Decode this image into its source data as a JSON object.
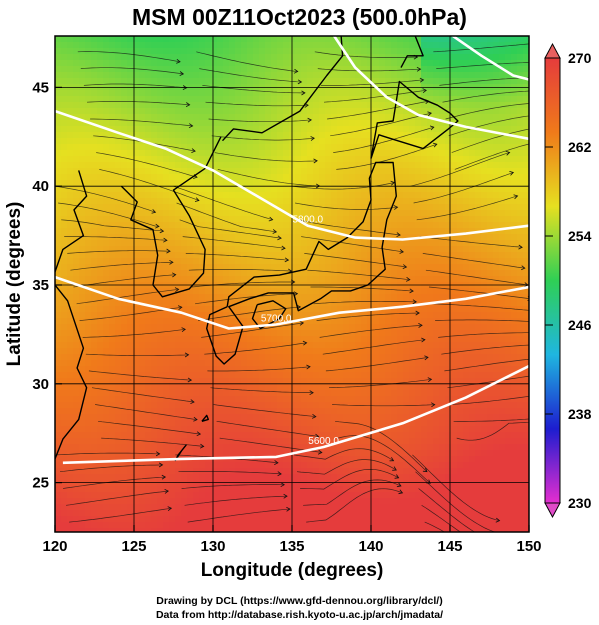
{
  "title": "MSM 00Z11Oct2023 (500.0hPa)",
  "chart_data": {
    "type": "heatmap",
    "title": "MSM 00Z11Oct2023 (500.0hPa)",
    "xlabel": "Longitude (degrees)",
    "ylabel": "Latitude  (degrees)",
    "xlim": [
      120,
      150
    ],
    "ylim": [
      22.5,
      47.6
    ],
    "x_ticks": [
      120,
      125,
      130,
      135,
      140,
      145,
      150
    ],
    "y_ticks": [
      25,
      30,
      35,
      40,
      45
    ],
    "colorbar": {
      "min": 230,
      "max": 270,
      "ticks": [
        230,
        238,
        246,
        254,
        262,
        270
      ],
      "colors": [
        "#e52ecf",
        "#1d1dcf",
        "#1fb6e0",
        "#2fcf55",
        "#e6e020",
        "#f07a1a",
        "#e53c3c"
      ]
    },
    "contours": [
      {
        "label": "5600.0",
        "points": [
          [
            120.5,
            26.0
          ],
          [
            128,
            26.2
          ],
          [
            134,
            26.3
          ],
          [
            137,
            26.8
          ],
          [
            142,
            28.0
          ],
          [
            146,
            29.3
          ],
          [
            150,
            30.9
          ]
        ]
      },
      {
        "label": "5700.0",
        "points": [
          [
            120,
            35.4
          ],
          [
            124,
            34.3
          ],
          [
            128,
            33.6
          ],
          [
            131,
            32.8
          ],
          [
            134,
            33.0
          ],
          [
            138,
            33.6
          ],
          [
            142,
            33.9
          ],
          [
            146,
            34.3
          ],
          [
            150,
            34.9
          ]
        ]
      },
      {
        "label": "5800.0",
        "points": [
          [
            120,
            43.8
          ],
          [
            124,
            42.7
          ],
          [
            127,
            41.9
          ],
          [
            130,
            40.8
          ],
          [
            133,
            39.4
          ],
          [
            136,
            38.0
          ],
          [
            139,
            37.4
          ],
          [
            142,
            37.3
          ],
          [
            146,
            37.6
          ],
          [
            150,
            38.0
          ]
        ]
      },
      {
        "label": "",
        "points": [
          [
            137.5,
            47.8
          ],
          [
            139,
            46.0
          ],
          [
            141,
            44.5
          ],
          [
            143,
            43.6
          ],
          [
            146,
            43.0
          ],
          [
            150,
            42.4
          ]
        ]
      },
      {
        "label": "",
        "points": [
          [
            145,
            47.7
          ],
          [
            147,
            46.6
          ],
          [
            149,
            45.6
          ],
          [
            150,
            45.4
          ]
        ]
      }
    ]
  },
  "credits": {
    "line1": "Drawing by DCL (https://www.gfd-dennou.org/library/dcl/)",
    "line2": "Data from http://database.rish.kyoto-u.ac.jp/arch/jmadata/"
  }
}
